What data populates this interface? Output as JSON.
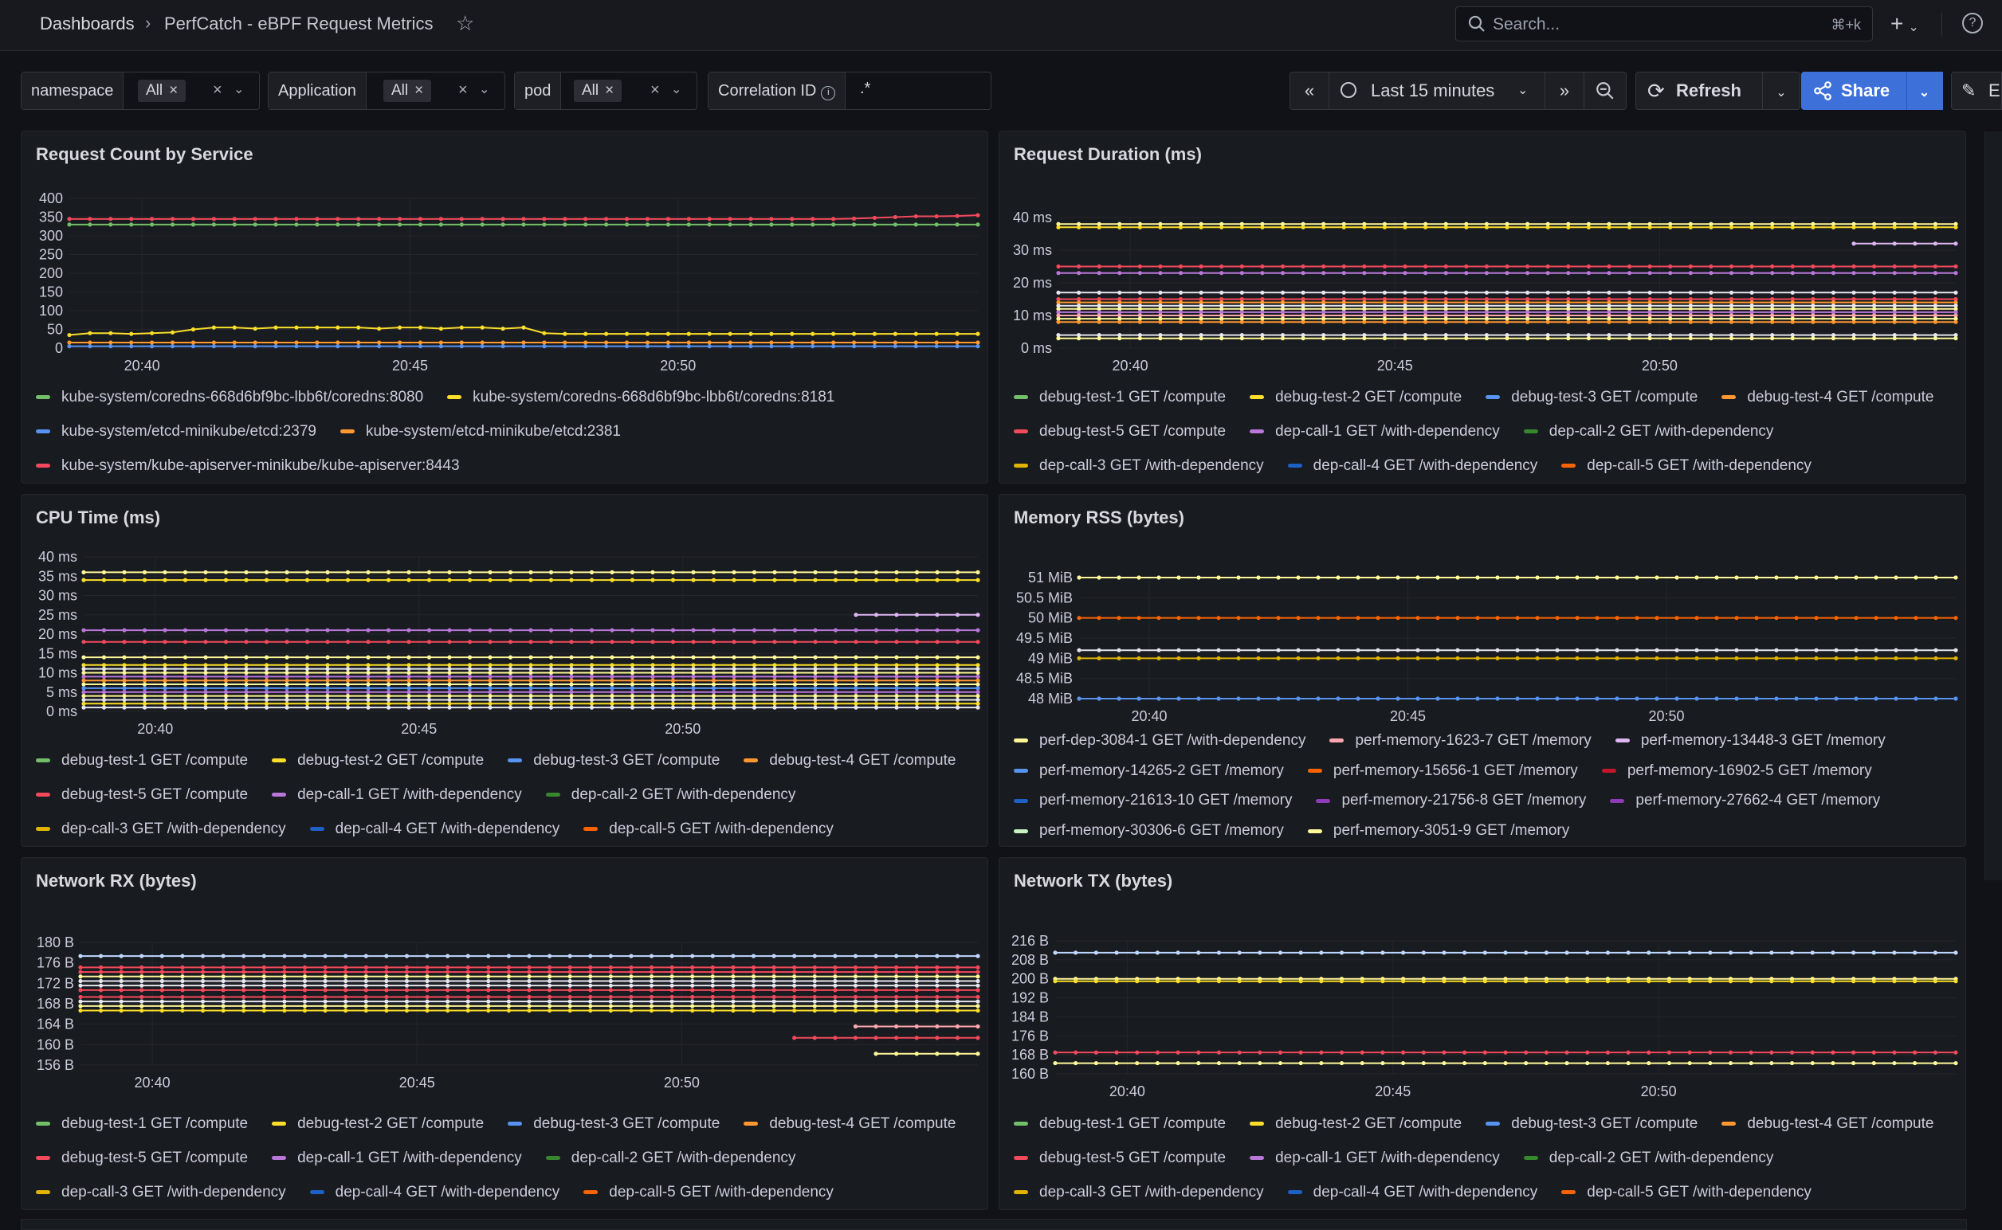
{
  "topbar": {
    "breadcrumb_root": "Dashboards",
    "breadcrumb_sep": "›",
    "dashboard_title": "PerfCatch - eBPF Request Metrics",
    "search_placeholder": "Search...",
    "search_shortcut": "⌘+k",
    "new_label": "+",
    "help_label": "?"
  },
  "variables": [
    {
      "label": "namespace",
      "value": "All"
    },
    {
      "label": "Application",
      "value": "All"
    },
    {
      "label": "pod",
      "value": "All"
    },
    {
      "label": "Correlation ID",
      "value": ".*"
    }
  ],
  "time_controls": {
    "time_range": "Last 15 minutes",
    "refresh_label": "Refresh",
    "share_label": "Share",
    "edit_label": "E"
  },
  "colors": {
    "green": "#73bf69",
    "yellow": "#fade2a",
    "blue": "#5794f2",
    "orange": "#ff9830",
    "red": "#f2495c",
    "purple": "#b877d9",
    "darkgreen": "#37872d",
    "darkyellow": "#e0b400",
    "darkblue": "#1f60c4",
    "darkorange": "#fa6400",
    "darkred": "#c4162a",
    "darkpurple": "#8f3bb8",
    "lightyellow": "#fff899",
    "lightgreen": "#c8f2c2",
    "lightpurple": "#deb6f2",
    "lightred": "#ffa6b0",
    "white": "#e6e6f0",
    "lightblue": "#c0d8ff"
  },
  "panels": {
    "request_count": {
      "title": "Request Count by Service",
      "legend": [
        {
          "label": "kube-system/coredns-668d6bf9bc-lbb6t/coredns:8080",
          "color": "green"
        },
        {
          "label": "kube-system/coredns-668d6bf9bc-lbb6t/coredns:8181",
          "color": "yellow"
        },
        {
          "label": "kube-system/etcd-minikube/etcd:2379",
          "color": "blue"
        },
        {
          "label": "kube-system/etcd-minikube/etcd:2381",
          "color": "orange"
        },
        {
          "label": "kube-system/kube-apiserver-minikube/kube-apiserver:8443",
          "color": "red"
        }
      ]
    },
    "request_duration": {
      "title": "Request Duration (ms)",
      "legend": [
        {
          "label": "debug-test-1 GET /compute",
          "color": "green"
        },
        {
          "label": "debug-test-2 GET /compute",
          "color": "yellow"
        },
        {
          "label": "debug-test-3 GET /compute",
          "color": "blue"
        },
        {
          "label": "debug-test-4 GET /compute",
          "color": "orange"
        },
        {
          "label": "debug-test-5 GET /compute",
          "color": "red"
        },
        {
          "label": "dep-call-1 GET /with-dependency",
          "color": "purple"
        },
        {
          "label": "dep-call-2 GET /with-dependency",
          "color": "darkgreen"
        },
        {
          "label": "dep-call-3 GET /with-dependency",
          "color": "darkyellow"
        },
        {
          "label": "dep-call-4 GET /with-dependency",
          "color": "darkblue"
        },
        {
          "label": "dep-call-5 GET /with-dependency",
          "color": "darkorange"
        }
      ]
    },
    "cpu_time": {
      "title": "CPU Time (ms)",
      "legend": [
        {
          "label": "debug-test-1 GET /compute",
          "color": "green"
        },
        {
          "label": "debug-test-2 GET /compute",
          "color": "yellow"
        },
        {
          "label": "debug-test-3 GET /compute",
          "color": "blue"
        },
        {
          "label": "debug-test-4 GET /compute",
          "color": "orange"
        },
        {
          "label": "debug-test-5 GET /compute",
          "color": "red"
        },
        {
          "label": "dep-call-1 GET /with-dependency",
          "color": "purple"
        },
        {
          "label": "dep-call-2 GET /with-dependency",
          "color": "darkgreen"
        },
        {
          "label": "dep-call-3 GET /with-dependency",
          "color": "darkyellow"
        },
        {
          "label": "dep-call-4 GET /with-dependency",
          "color": "darkblue"
        },
        {
          "label": "dep-call-5 GET /with-dependency",
          "color": "darkorange"
        }
      ]
    },
    "memory_rss": {
      "title": "Memory RSS (bytes)",
      "legend": [
        {
          "label": "perf-dep-3084-1 GET /with-dependency",
          "color": "lightyellow"
        },
        {
          "label": "perf-memory-1623-7 GET /memory",
          "color": "lightred"
        },
        {
          "label": "perf-memory-13448-3 GET /memory",
          "color": "lightpurple"
        },
        {
          "label": "perf-memory-14265-2 GET /memory",
          "color": "blue"
        },
        {
          "label": "perf-memory-15656-1 GET /memory",
          "color": "darkorange"
        },
        {
          "label": "perf-memory-16902-5 GET /memory",
          "color": "darkred"
        },
        {
          "label": "perf-memory-21613-10 GET /memory",
          "color": "darkblue"
        },
        {
          "label": "perf-memory-21756-8 GET /memory",
          "color": "darkpurple"
        },
        {
          "label": "perf-memory-27662-4 GET /memory",
          "color": "darkpurple"
        },
        {
          "label": "perf-memory-30306-6 GET /memory",
          "color": "lightgreen"
        },
        {
          "label": "perf-memory-3051-9 GET /memory",
          "color": "lightyellow"
        }
      ]
    },
    "network_rx": {
      "title": "Network RX (bytes)",
      "legend": [
        {
          "label": "debug-test-1 GET /compute",
          "color": "green"
        },
        {
          "label": "debug-test-2 GET /compute",
          "color": "yellow"
        },
        {
          "label": "debug-test-3 GET /compute",
          "color": "blue"
        },
        {
          "label": "debug-test-4 GET /compute",
          "color": "orange"
        },
        {
          "label": "debug-test-5 GET /compute",
          "color": "red"
        },
        {
          "label": "dep-call-1 GET /with-dependency",
          "color": "purple"
        },
        {
          "label": "dep-call-2 GET /with-dependency",
          "color": "darkgreen"
        },
        {
          "label": "dep-call-3 GET /with-dependency",
          "color": "darkyellow"
        },
        {
          "label": "dep-call-4 GET /with-dependency",
          "color": "darkblue"
        },
        {
          "label": "dep-call-5 GET /with-dependency",
          "color": "darkorange"
        }
      ]
    },
    "network_tx": {
      "title": "Network TX (bytes)",
      "legend": [
        {
          "label": "debug-test-1 GET /compute",
          "color": "green"
        },
        {
          "label": "debug-test-2 GET /compute",
          "color": "yellow"
        },
        {
          "label": "debug-test-3 GET /compute",
          "color": "blue"
        },
        {
          "label": "debug-test-4 GET /compute",
          "color": "orange"
        },
        {
          "label": "debug-test-5 GET /compute",
          "color": "red"
        },
        {
          "label": "dep-call-1 GET /with-dependency",
          "color": "purple"
        },
        {
          "label": "dep-call-2 GET /with-dependency",
          "color": "darkgreen"
        },
        {
          "label": "dep-call-3 GET /with-dependency",
          "color": "darkyellow"
        },
        {
          "label": "dep-call-4 GET /with-dependency",
          "color": "darkblue"
        },
        {
          "label": "dep-call-5 GET /with-dependency",
          "color": "darkorange"
        }
      ]
    }
  },
  "chart_data": [
    {
      "id": "request_count",
      "type": "line",
      "title": "Request Count by Service",
      "y_ticks": [
        "400",
        "350",
        "300",
        "250",
        "200",
        "150",
        "100",
        "50",
        "0"
      ],
      "ylim": [
        0,
        400
      ],
      "x_ticks": [
        "20:40",
        "20:45",
        "20:50"
      ],
      "series": [
        {
          "name": "kube-system/coredns-668d6bf9bc-lbb6t/coredns:8080",
          "color": "green",
          "values": [
            330,
            330,
            330,
            330,
            330,
            330,
            330,
            330,
            330,
            330,
            330,
            330,
            330,
            330,
            330,
            330,
            330,
            330,
            330,
            330,
            330,
            330,
            330,
            330,
            330,
            330,
            330,
            330,
            330,
            330,
            330,
            330,
            330,
            330,
            330,
            330,
            330,
            330,
            330,
            330,
            330,
            330,
            330,
            330,
            330
          ]
        },
        {
          "name": "kube-system/kube-apiserver-minikube/kube-apiserver:8443",
          "color": "red",
          "values": [
            345,
            345,
            345,
            345,
            345,
            345,
            345,
            345,
            345,
            345,
            345,
            345,
            345,
            345,
            345,
            345,
            345,
            345,
            345,
            345,
            345,
            345,
            345,
            345,
            345,
            345,
            345,
            345,
            345,
            345,
            345,
            345,
            345,
            345,
            345,
            345,
            345,
            345,
            346,
            348,
            350,
            352,
            352,
            353,
            355
          ]
        },
        {
          "name": "kube-system/coredns-668d6bf9bc-lbb6t/coredns:8181",
          "color": "yellow",
          "values": [
            35,
            40,
            40,
            38,
            40,
            42,
            50,
            55,
            55,
            52,
            55,
            55,
            55,
            55,
            55,
            52,
            55,
            55,
            52,
            55,
            55,
            52,
            55,
            40,
            38,
            38,
            38,
            38,
            38,
            38,
            38,
            38,
            38,
            38,
            38,
            38,
            38,
            38,
            38,
            38,
            38,
            38,
            38,
            38,
            38
          ]
        },
        {
          "name": "kube-system/etcd-minikube/etcd:2379",
          "color": "blue",
          "values": [
            5,
            5,
            5,
            5,
            5,
            5,
            5,
            5,
            5,
            5,
            5,
            5,
            5,
            5,
            5,
            5,
            5,
            5,
            5,
            5,
            5,
            5,
            5,
            5,
            5,
            5,
            5,
            5,
            5,
            5,
            5,
            5,
            5,
            5,
            5,
            5,
            5,
            5,
            5,
            5,
            5,
            5,
            5,
            5,
            5
          ]
        },
        {
          "name": "kube-system/etcd-minikube/etcd:2381",
          "color": "orange",
          "values": [
            15,
            15,
            15,
            15,
            15,
            15,
            15,
            15,
            15,
            15,
            15,
            15,
            15,
            15,
            15,
            15,
            15,
            15,
            15,
            15,
            15,
            15,
            15,
            15,
            15,
            15,
            15,
            15,
            15,
            15,
            15,
            15,
            15,
            15,
            15,
            15,
            15,
            15,
            15,
            15,
            15,
            15,
            15,
            15,
            15
          ]
        }
      ]
    },
    {
      "id": "request_duration",
      "type": "line",
      "title": "Request Duration (ms)",
      "y_ticks": [
        "40 ms",
        "30 ms",
        "20 ms",
        "10 ms",
        "0 ms"
      ],
      "ylim": [
        0,
        40
      ],
      "x_ticks": [
        "20:40",
        "20:45",
        "20:50"
      ],
      "levels": [
        {
          "y": 38,
          "color": "lightyellow"
        },
        {
          "y": 37,
          "color": "yellow"
        },
        {
          "y": 25,
          "color": "red"
        },
        {
          "y": 23,
          "color": "purple"
        },
        {
          "y": 17,
          "color": "white"
        },
        {
          "y": 15,
          "color": "red"
        },
        {
          "y": 14,
          "color": "orange"
        },
        {
          "y": 13,
          "color": "white"
        },
        {
          "y": 12,
          "color": "lightyellow"
        },
        {
          "y": 11,
          "color": "purple"
        },
        {
          "y": 10,
          "color": "lightred"
        },
        {
          "y": 9,
          "color": "lightyellow"
        },
        {
          "y": 8,
          "color": "orange"
        },
        {
          "y": 4,
          "color": "white"
        },
        {
          "y": 3,
          "color": "lightyellow"
        }
      ],
      "partial": [
        {
          "y": 32,
          "color": "lightpurple",
          "from": 0.9
        }
      ]
    },
    {
      "id": "cpu_time",
      "type": "line",
      "title": "CPU Time (ms)",
      "y_ticks": [
        "40 ms",
        "35 ms",
        "30 ms",
        "25 ms",
        "20 ms",
        "15 ms",
        "10 ms",
        "5 ms",
        "0 ms"
      ],
      "ylim": [
        0,
        40
      ],
      "x_ticks": [
        "20:40",
        "20:45",
        "20:50"
      ],
      "levels": [
        {
          "y": 36,
          "color": "lightyellow"
        },
        {
          "y": 34,
          "color": "yellow"
        },
        {
          "y": 21,
          "color": "purple"
        },
        {
          "y": 18,
          "color": "red"
        },
        {
          "y": 14,
          "color": "lightyellow"
        },
        {
          "y": 12,
          "color": "yellow"
        },
        {
          "y": 11,
          "color": "white"
        },
        {
          "y": 10,
          "color": "lightyellow"
        },
        {
          "y": 9,
          "color": "purple"
        },
        {
          "y": 8,
          "color": "orange"
        },
        {
          "y": 7,
          "color": "lightyellow"
        },
        {
          "y": 6,
          "color": "blue"
        },
        {
          "y": 5,
          "color": "purple"
        },
        {
          "y": 4,
          "color": "lightyellow"
        },
        {
          "y": 3,
          "color": "white"
        },
        {
          "y": 2,
          "color": "yellow"
        },
        {
          "y": 1,
          "color": "white"
        }
      ],
      "partial": [
        {
          "y": 25,
          "color": "lightpurple",
          "from": 0.88
        }
      ]
    },
    {
      "id": "memory_rss",
      "type": "line",
      "title": "Memory RSS (bytes)",
      "y_ticks": [
        "51 MiB",
        "50.5 MiB",
        "50 MiB",
        "49.5 MiB",
        "49 MiB",
        "48.5 MiB",
        "48 MiB"
      ],
      "ylim": [
        48,
        51
      ],
      "x_ticks": [
        "20:40",
        "20:45",
        "20:50"
      ],
      "levels": [
        {
          "y": 51,
          "color": "lightyellow"
        },
        {
          "y": 50,
          "color": "darkorange"
        },
        {
          "y": 49.2,
          "color": "white"
        },
        {
          "y": 49.0,
          "color": "darkyellow"
        },
        {
          "y": 48,
          "color": "blue"
        }
      ],
      "partial": []
    },
    {
      "id": "network_rx",
      "type": "line",
      "title": "Network RX (bytes)",
      "y_ticks": [
        "180 B",
        "176 B",
        "172 B",
        "168 B",
        "164 B",
        "160 B",
        "156 B"
      ],
      "ylim": [
        154,
        181
      ],
      "x_ticks": [
        "20:40",
        "20:45",
        "20:50"
      ],
      "levels": [
        {
          "y": 178,
          "color": "lightblue"
        },
        {
          "y": 175.5,
          "color": "red"
        },
        {
          "y": 174.5,
          "color": "red"
        },
        {
          "y": 173.5,
          "color": "lightyellow"
        },
        {
          "y": 172.5,
          "color": "white"
        },
        {
          "y": 171.5,
          "color": "white"
        },
        {
          "y": 170.5,
          "color": "red"
        },
        {
          "y": 169,
          "color": "red"
        },
        {
          "y": 168,
          "color": "white"
        },
        {
          "y": 167,
          "color": "lightyellow"
        },
        {
          "y": 166,
          "color": "yellow"
        }
      ],
      "partial": [
        {
          "y": 162.5,
          "color": "lightred",
          "from": 0.87
        },
        {
          "y": 160,
          "color": "red",
          "from": 0.81
        },
        {
          "y": 156.5,
          "color": "lightyellow",
          "from": 0.89
        }
      ]
    },
    {
      "id": "network_tx",
      "type": "line",
      "title": "Network TX (bytes)",
      "y_ticks": [
        "216 B",
        "208 B",
        "200 B",
        "192 B",
        "184 B",
        "176 B",
        "168 B",
        "160 B"
      ],
      "ylim": [
        160,
        216
      ],
      "x_ticks": [
        "20:40",
        "20:45",
        "20:50"
      ],
      "levels": [
        {
          "y": 211,
          "color": "lightblue"
        },
        {
          "y": 200,
          "color": "lightyellow"
        },
        {
          "y": 199,
          "color": "yellow"
        },
        {
          "y": 169,
          "color": "red"
        },
        {
          "y": 164.5,
          "color": "lightyellow"
        }
      ],
      "partial": []
    }
  ]
}
